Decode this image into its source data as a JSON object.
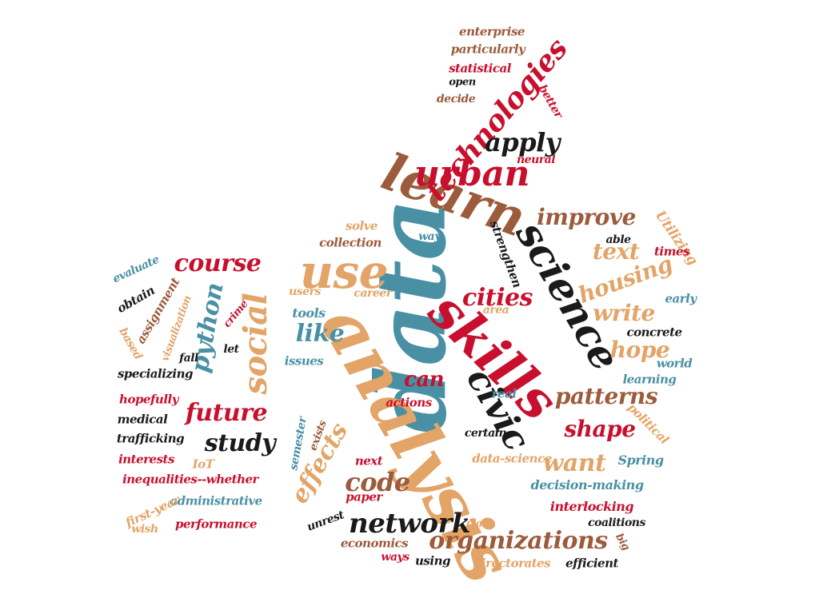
{
  "palette": {
    "red": "#C8102E",
    "tan": "#E3A467",
    "brown": "#9C5B3B",
    "teal": "#4A90A4",
    "black": "#1a1a1a"
  },
  "words": [
    {
      "text": "data",
      "color": "teal"
    },
    {
      "text": "analysis",
      "color": "tan"
    },
    {
      "text": "skills",
      "color": "red"
    },
    {
      "text": "learn",
      "color": "brown"
    },
    {
      "text": "use",
      "color": "tan"
    },
    {
      "text": "science",
      "color": "black"
    },
    {
      "text": "urban",
      "color": "red"
    },
    {
      "text": "civic",
      "color": "black"
    },
    {
      "text": "technologies",
      "color": "red"
    },
    {
      "text": "social",
      "color": "tan"
    },
    {
      "text": "network",
      "color": "black"
    },
    {
      "text": "organizations",
      "color": "brown"
    },
    {
      "text": "code",
      "color": "brown"
    },
    {
      "text": "effects",
      "color": "tan"
    },
    {
      "text": "course",
      "color": "red"
    },
    {
      "text": "python",
      "color": "teal"
    },
    {
      "text": "future",
      "color": "red"
    },
    {
      "text": "study",
      "color": "black"
    },
    {
      "text": "apply",
      "color": "black"
    },
    {
      "text": "improve",
      "color": "brown"
    },
    {
      "text": "housing",
      "color": "tan"
    },
    {
      "text": "text",
      "color": "tan"
    },
    {
      "text": "cities",
      "color": "red"
    },
    {
      "text": "like",
      "color": "teal"
    },
    {
      "text": "write",
      "color": "tan"
    },
    {
      "text": "hope",
      "color": "tan"
    },
    {
      "text": "patterns",
      "color": "brown"
    },
    {
      "text": "shape",
      "color": "red"
    },
    {
      "text": "want",
      "color": "tan"
    },
    {
      "text": "can",
      "color": "red"
    },
    {
      "text": "enterprise",
      "color": "brown"
    },
    {
      "text": "particularly",
      "color": "brown"
    },
    {
      "text": "statistical",
      "color": "red"
    },
    {
      "text": "open",
      "color": "black"
    },
    {
      "text": "decide",
      "color": "brown"
    },
    {
      "text": "better",
      "color": "red"
    },
    {
      "text": "neural",
      "color": "red"
    },
    {
      "text": "Utilizing",
      "color": "tan"
    },
    {
      "text": "solve",
      "color": "tan"
    },
    {
      "text": "way",
      "color": "teal"
    },
    {
      "text": "collection",
      "color": "brown"
    },
    {
      "text": "strengthen",
      "color": "black"
    },
    {
      "text": "able",
      "color": "black"
    },
    {
      "text": "times",
      "color": "red"
    },
    {
      "text": "users",
      "color": "tan"
    },
    {
      "text": "career",
      "color": "tan"
    },
    {
      "text": "area",
      "color": "tan"
    },
    {
      "text": "tools",
      "color": "teal"
    },
    {
      "text": "early",
      "color": "teal"
    },
    {
      "text": "concrete",
      "color": "black"
    },
    {
      "text": "world",
      "color": "teal"
    },
    {
      "text": "issues",
      "color": "teal"
    },
    {
      "text": "learning",
      "color": "teal"
    },
    {
      "text": "actions",
      "color": "red"
    },
    {
      "text": "real",
      "color": "teal"
    },
    {
      "text": "political",
      "color": "tan"
    },
    {
      "text": "semester",
      "color": "teal"
    },
    {
      "text": "exists",
      "color": "brown"
    },
    {
      "text": "certain",
      "color": "black"
    },
    {
      "text": "data-science",
      "color": "tan"
    },
    {
      "text": "next",
      "color": "red"
    },
    {
      "text": "Spring",
      "color": "teal"
    },
    {
      "text": "decision-making",
      "color": "teal"
    },
    {
      "text": "paper",
      "color": "red"
    },
    {
      "text": "interlocking",
      "color": "red"
    },
    {
      "text": "unrest",
      "color": "black"
    },
    {
      "text": "class",
      "color": "tan"
    },
    {
      "text": "coalitions",
      "color": "black"
    },
    {
      "text": "economics",
      "color": "brown"
    },
    {
      "text": "ways",
      "color": "red"
    },
    {
      "text": "big",
      "color": "brown"
    },
    {
      "text": "using",
      "color": "black"
    },
    {
      "text": "directorates",
      "color": "tan"
    },
    {
      "text": "efficient",
      "color": "black"
    },
    {
      "text": "evaluate",
      "color": "teal"
    },
    {
      "text": "obtain",
      "color": "black"
    },
    {
      "text": "assignment",
      "color": "brown"
    },
    {
      "text": "visualization",
      "color": "tan"
    },
    {
      "text": "crime",
      "color": "red"
    },
    {
      "text": "based",
      "color": "tan"
    },
    {
      "text": "fall",
      "color": "black"
    },
    {
      "text": "let",
      "color": "black"
    },
    {
      "text": "specializing",
      "color": "black"
    },
    {
      "text": "hopefully",
      "color": "red"
    },
    {
      "text": "medical",
      "color": "black"
    },
    {
      "text": "trafficking",
      "color": "black"
    },
    {
      "text": "interests",
      "color": "red"
    },
    {
      "text": "IoT",
      "color": "tan"
    },
    {
      "text": "inequalities--whether",
      "color": "red"
    },
    {
      "text": "administrative",
      "color": "teal"
    },
    {
      "text": "first-year",
      "color": "tan"
    },
    {
      "text": "wish",
      "color": "tan"
    },
    {
      "text": "performance",
      "color": "red"
    }
  ]
}
